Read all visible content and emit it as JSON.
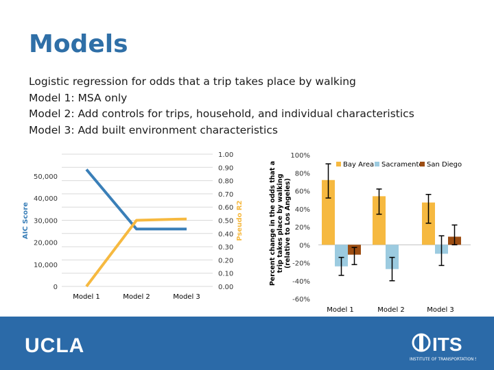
{
  "slide": {
    "title": "Models",
    "bullets": [
      "Logistic regression for odds that a trip takes place by walking",
      "Model 1: MSA only",
      "Model 2: Add controls for trips, household, and individual characteristics",
      "Model 3: Add built environment characteristics"
    ],
    "footer_logo": "UCLA",
    "its_logo": "ITS Institute of Transportation Studies"
  },
  "colors": {
    "aic": "#3a7fb8",
    "pseudo": "#f6b940",
    "bay_area": "#f6b940",
    "sacramento": "#9ccbe0",
    "san_diego": "#9c4d12",
    "footer": "#2b6aa8",
    "title": "#2f6fa7"
  },
  "chart_data": [
    {
      "type": "line",
      "title": "",
      "categories": [
        "Model 1",
        "Model 2",
        "Model 3"
      ],
      "ylabel": "AIC Score",
      "y2label": "Pseudo R2",
      "ylim": [
        0,
        50000
      ],
      "yticks": [
        "0",
        "10,000",
        "20,000",
        "30,000",
        "40,000",
        "50,000"
      ],
      "y2lim": [
        0,
        1
      ],
      "y2ticks": [
        "0.00",
        "0.10",
        "0.20",
        "0.30",
        "0.40",
        "0.50",
        "0.60",
        "0.70",
        "0.80",
        "0.90",
        "1.00"
      ],
      "grid": true,
      "series": [
        {
          "values": [
            53000,
            26000,
            26000
          ],
          "axis": "left",
          "color": "#3a7fb8"
        },
        {
          "values": [
            0.0,
            0.5,
            0.51
          ],
          "axis": "right",
          "color": "#f6b940"
        }
      ]
    },
    {
      "type": "bar",
      "title": "",
      "categories": [
        "Model 1",
        "Model 2",
        "Model 3"
      ],
      "ylabel": "Percent change in the odds that a trip takes place by walking (relative to Los Angeles)",
      "ylim": [
        -60,
        100
      ],
      "yticks": [
        "-60%",
        "-40%",
        "-20%",
        "0%",
        "20%",
        "40%",
        "60%",
        "80%",
        "100%"
      ],
      "legend_position": "top-right",
      "series": [
        {
          "name": "Bay Area",
          "values": [
            72,
            54,
            47
          ],
          "err_low": [
            -20,
            -20,
            -23
          ],
          "err_high": [
            18,
            8,
            9
          ],
          "color": "#f6b940"
        },
        {
          "name": "Sacramento",
          "values": [
            -24,
            -27,
            -10
          ],
          "err_low": [
            -10,
            -13,
            -13
          ],
          "err_high": [
            10,
            13,
            20
          ],
          "color": "#9ccbe0"
        },
        {
          "name": "San Diego",
          "values": [
            -11,
            null,
            9
          ],
          "err_low": [
            -11,
            null,
            -9
          ],
          "err_high": [
            8,
            null,
            13
          ],
          "color": "#9c4d12"
        }
      ]
    }
  ]
}
